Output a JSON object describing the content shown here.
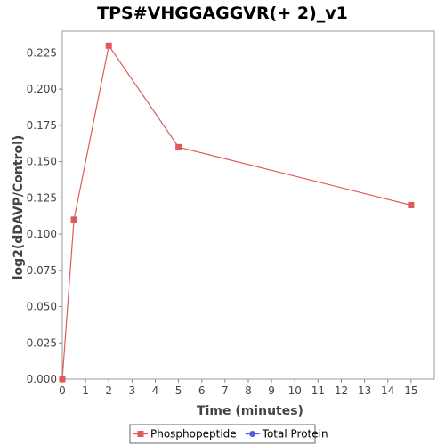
{
  "chart_data": {
    "type": "line",
    "title": "TPS#VHGGAGGVR(+ 2)_v1",
    "xlabel": "Time (minutes)",
    "ylabel": "log2(dDAVP/Control)",
    "xlim": [
      0,
      16
    ],
    "ylim": [
      0,
      0.24
    ],
    "x_ticks": [
      0,
      1,
      2,
      3,
      4,
      5,
      6,
      7,
      8,
      9,
      10,
      11,
      12,
      13,
      14,
      15
    ],
    "y_ticks": [
      "0.000",
      "0.025",
      "0.050",
      "0.075",
      "0.100",
      "0.125",
      "0.150",
      "0.175",
      "0.200",
      "0.225"
    ],
    "grid": false,
    "legend_position": "bottom",
    "series": [
      {
        "name": "Phosphopeptide",
        "color": "#e05a5a",
        "marker": "square",
        "x": [
          0,
          0.5,
          2,
          5,
          15
        ],
        "y": [
          0.0,
          0.11,
          0.23,
          0.16,
          0.12
        ]
      },
      {
        "name": "Total Protein",
        "color": "#5a5ae0",
        "marker": "circle",
        "x": [],
        "y": []
      }
    ]
  }
}
